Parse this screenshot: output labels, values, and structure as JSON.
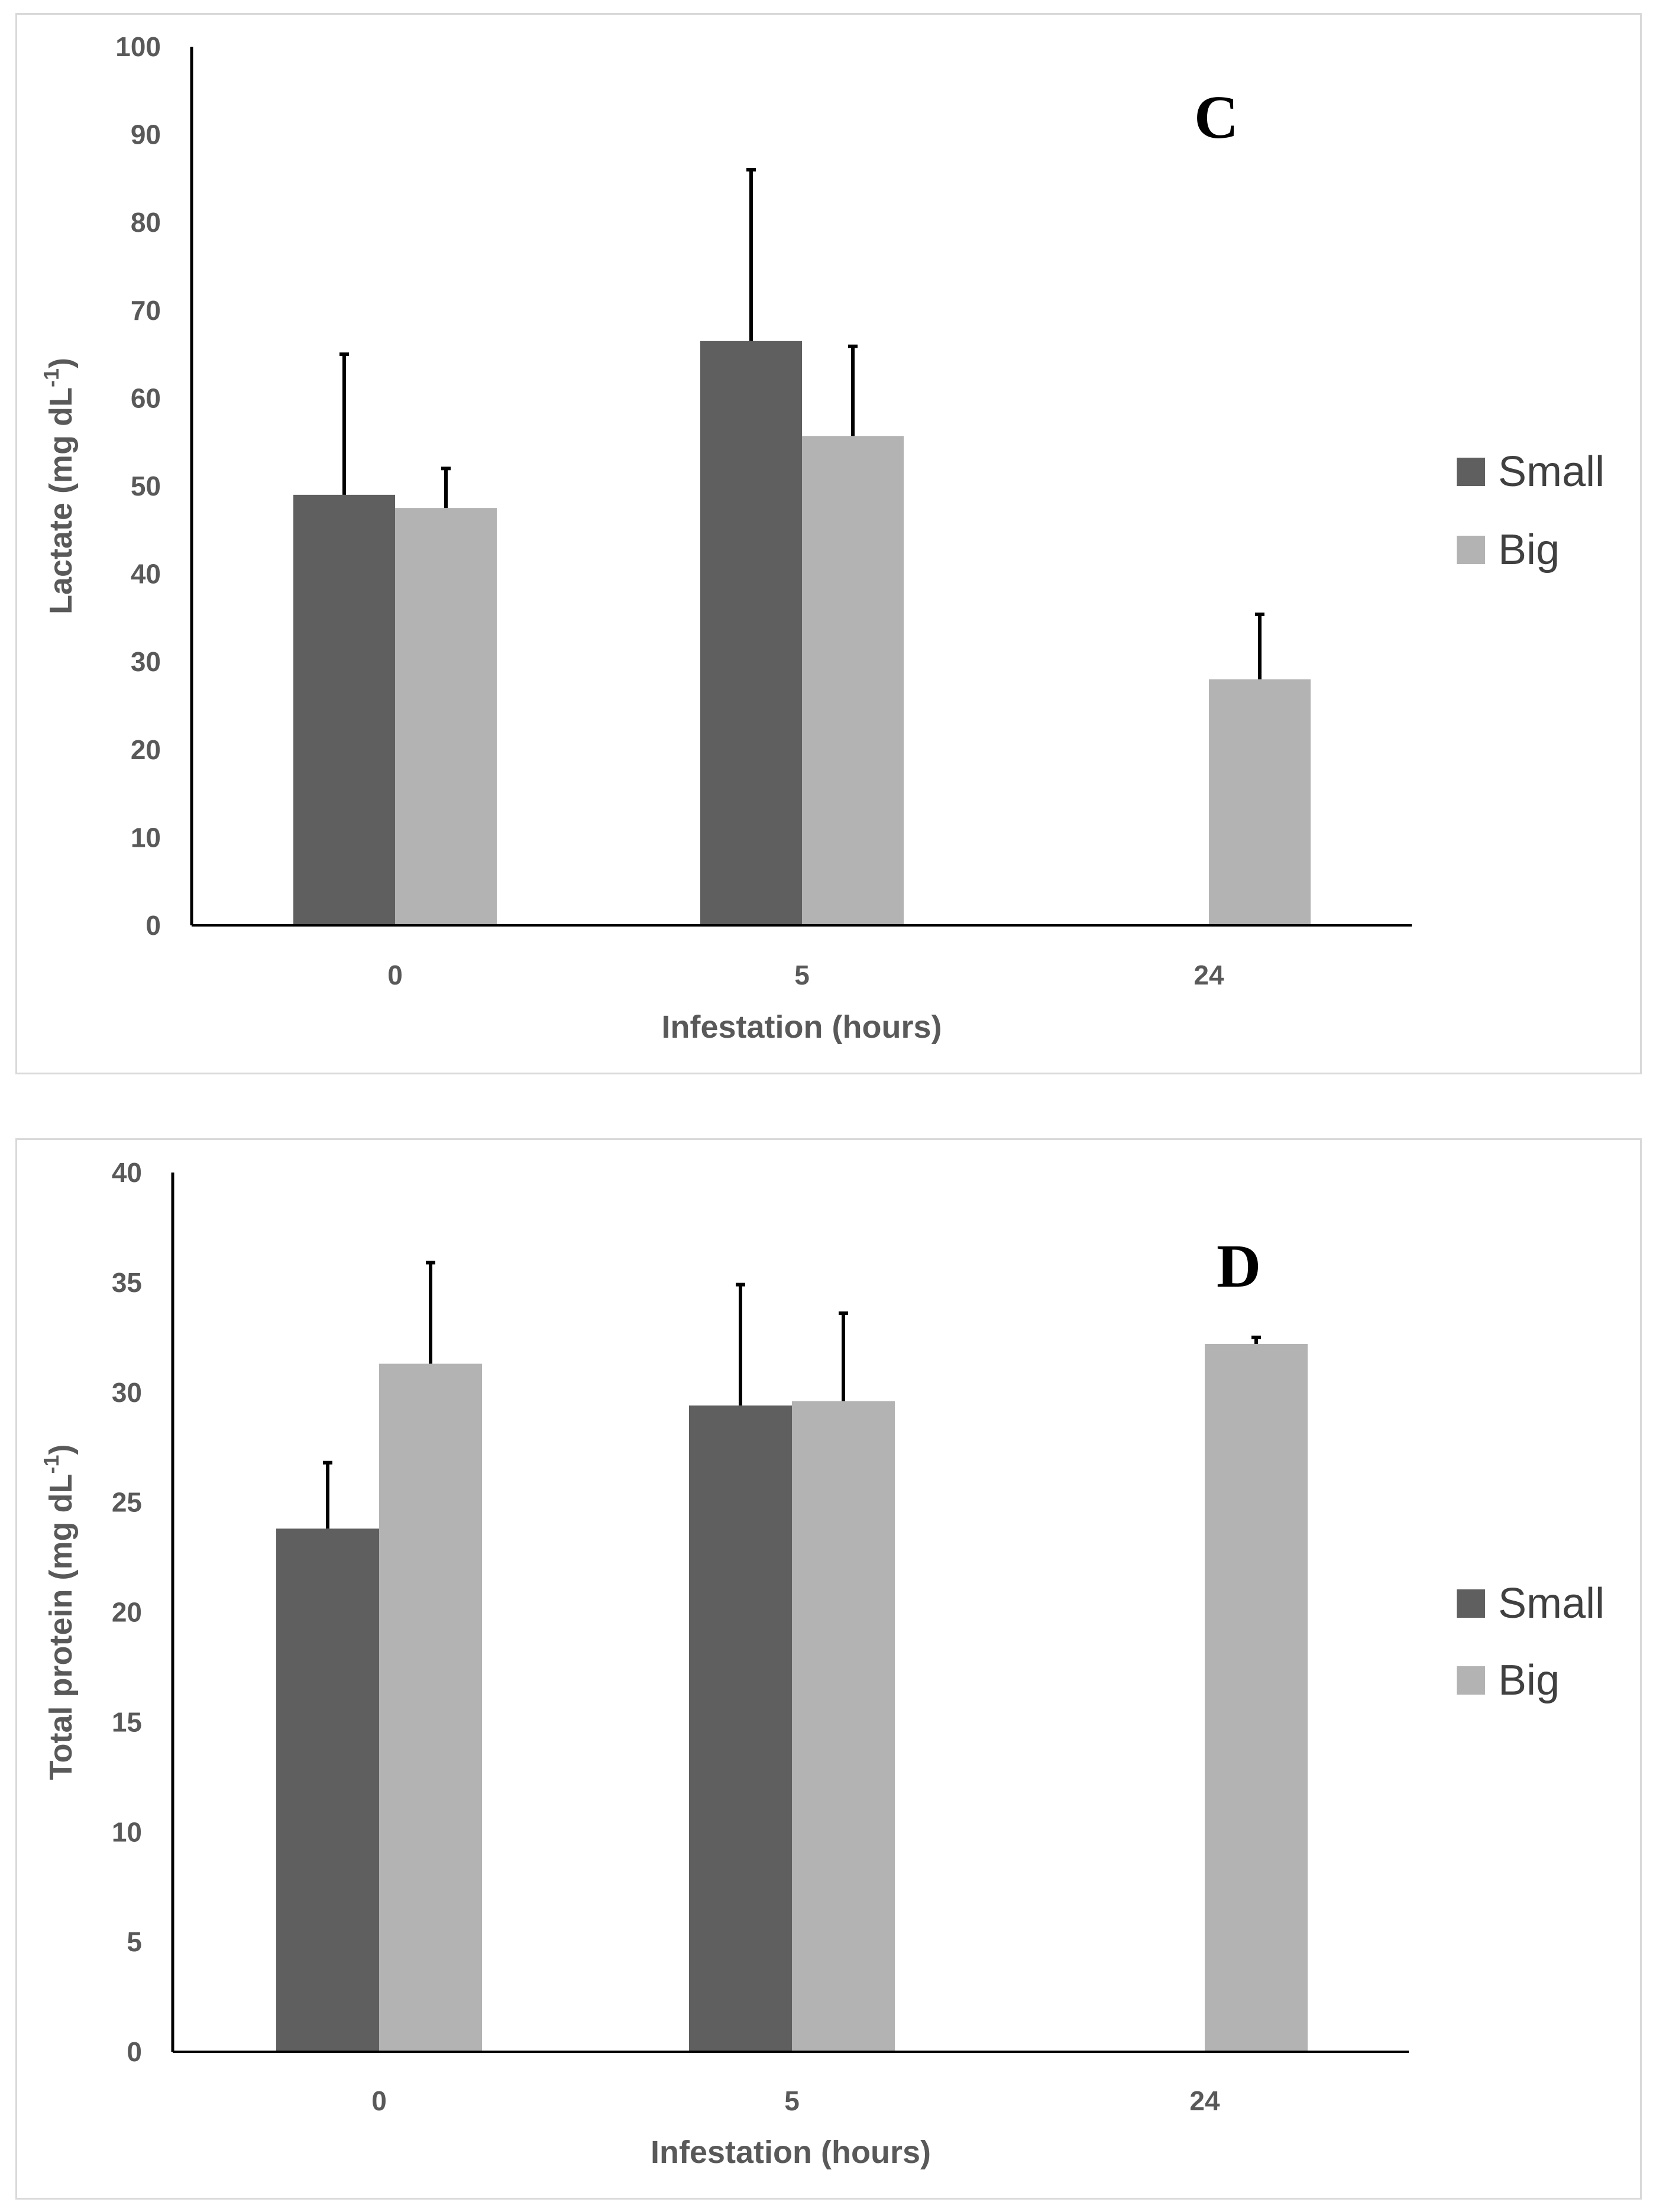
{
  "chart_data": [
    {
      "type": "bar",
      "panel_label": "C",
      "categories": [
        "0",
        "5",
        "24"
      ],
      "series": [
        {
          "name": "Small",
          "color": "#5f5f5f",
          "values": [
            49,
            66.5,
            null
          ],
          "errors": [
            16,
            19.5,
            null
          ]
        },
        {
          "name": "Big",
          "color": "#b3b3b3",
          "values": [
            47.5,
            55.7,
            28
          ],
          "errors": [
            4.5,
            10.2,
            7.4
          ]
        }
      ],
      "xlabel": "Infestation (hours)",
      "ylabel_main": "Lactate (mg dL",
      "ylabel_sup": "-1",
      "ylabel_close": ")",
      "ylim": [
        0,
        100
      ],
      "yticks": [
        "0",
        "10",
        "20",
        "30",
        "40",
        "50",
        "60",
        "70",
        "80",
        "90",
        "100"
      ],
      "grid": false,
      "legend_position": "right"
    },
    {
      "type": "bar",
      "panel_label": "D",
      "categories": [
        "0",
        "5",
        "24"
      ],
      "series": [
        {
          "name": "Small",
          "color": "#5f5f5f",
          "values": [
            23.8,
            29.4,
            null
          ],
          "errors": [
            3,
            5.5,
            null
          ]
        },
        {
          "name": "Big",
          "color": "#b3b3b3",
          "values": [
            31.3,
            29.6,
            32.2
          ],
          "errors": [
            4.6,
            4,
            0.3
          ]
        }
      ],
      "xlabel": "Infestation (hours)",
      "ylabel_main": "Total protein (mg dL",
      "ylabel_sup": "-1",
      "ylabel_close": ")",
      "ylim": [
        0,
        40
      ],
      "yticks": [
        "0",
        "5",
        "10",
        "15",
        "20",
        "25",
        "30",
        "35",
        "40"
      ],
      "grid": false,
      "legend_position": "right"
    }
  ]
}
